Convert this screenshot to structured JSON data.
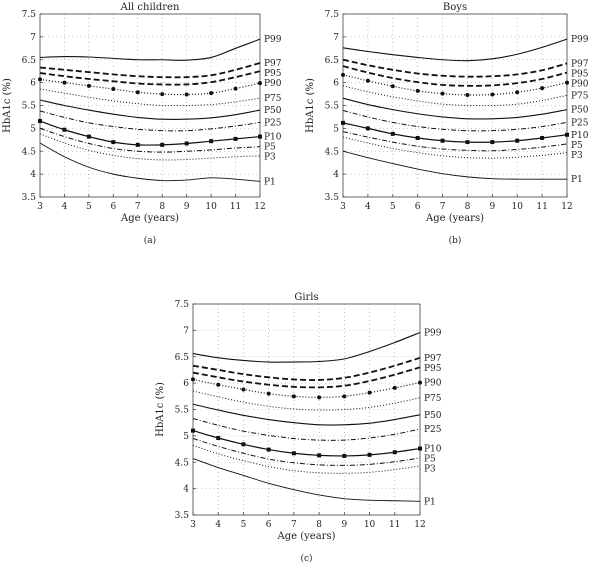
{
  "figure": {
    "captions": [
      "(a)",
      "(b)",
      "(c)"
    ]
  },
  "chart_data": [
    {
      "type": "line",
      "title": "All children",
      "caption": "(a)",
      "xlabel": "Age (years)",
      "ylabel": "HbA1c (%)",
      "xlim": [
        3,
        12
      ],
      "ylim": [
        3.5,
        7.5
      ],
      "xticks": [
        3,
        4,
        5,
        6,
        7,
        8,
        9,
        10,
        11,
        12
      ],
      "yticks": [
        3.5,
        4,
        4.5,
        5,
        5.5,
        6,
        6.5,
        7,
        7.5
      ],
      "x": [
        3,
        4,
        5,
        6,
        7,
        8,
        9,
        10,
        11,
        12
      ],
      "series": [
        {
          "name": "P99",
          "style": "solid",
          "values": [
            6.55,
            6.57,
            6.56,
            6.53,
            6.5,
            6.5,
            6.49,
            6.55,
            6.75,
            6.95
          ]
        },
        {
          "name": "P97",
          "style": "dash",
          "values": [
            6.33,
            6.28,
            6.23,
            6.18,
            6.14,
            6.12,
            6.12,
            6.16,
            6.28,
            6.43
          ]
        },
        {
          "name": "P95",
          "style": "dash",
          "values": [
            6.21,
            6.14,
            6.08,
            6.03,
            5.98,
            5.96,
            5.96,
            6.01,
            6.12,
            6.25
          ]
        },
        {
          "name": "P90",
          "style": "dotted-marker",
          "values": [
            6.07,
            6.0,
            5.93,
            5.86,
            5.79,
            5.75,
            5.74,
            5.77,
            5.87,
            5.99
          ]
        },
        {
          "name": "P75",
          "style": "dot",
          "values": [
            5.86,
            5.77,
            5.68,
            5.6,
            5.54,
            5.5,
            5.5,
            5.52,
            5.58,
            5.66
          ]
        },
        {
          "name": "P50",
          "style": "solid",
          "values": [
            5.62,
            5.5,
            5.4,
            5.31,
            5.24,
            5.2,
            5.2,
            5.23,
            5.3,
            5.4
          ]
        },
        {
          "name": "P25",
          "style": "dashdot",
          "values": [
            5.38,
            5.24,
            5.12,
            5.04,
            4.98,
            4.95,
            4.95,
            4.99,
            5.05,
            5.13
          ]
        },
        {
          "name": "P10",
          "style": "square-marker",
          "values": [
            5.16,
            4.97,
            4.82,
            4.7,
            4.64,
            4.64,
            4.67,
            4.72,
            4.77,
            4.82
          ]
        },
        {
          "name": "P5",
          "style": "dashdot",
          "values": [
            5.0,
            4.82,
            4.67,
            4.56,
            4.5,
            4.48,
            4.5,
            4.53,
            4.57,
            4.6
          ]
        },
        {
          "name": "P3",
          "style": "dot",
          "values": [
            4.88,
            4.68,
            4.52,
            4.41,
            4.34,
            4.31,
            4.32,
            4.35,
            4.38,
            4.4
          ]
        },
        {
          "name": "P1",
          "style": "thin",
          "values": [
            4.68,
            4.38,
            4.15,
            4.0,
            3.91,
            3.86,
            3.87,
            3.92,
            3.89,
            3.84
          ]
        }
      ]
    },
    {
      "type": "line",
      "title": "Boys",
      "caption": "(b)",
      "xlabel": "Age (years)",
      "ylabel": "HbA1c (%)",
      "xlim": [
        3,
        12
      ],
      "ylim": [
        3.5,
        7.5
      ],
      "xticks": [
        3,
        4,
        5,
        6,
        7,
        8,
        9,
        10,
        11,
        12
      ],
      "yticks": [
        3.5,
        4,
        4.5,
        5,
        5.5,
        6,
        6.5,
        7,
        7.5
      ],
      "x": [
        3,
        4,
        5,
        6,
        7,
        8,
        9,
        10,
        11,
        12
      ],
      "series": [
        {
          "name": "P99",
          "style": "solid",
          "values": [
            6.76,
            6.68,
            6.61,
            6.55,
            6.5,
            6.48,
            6.52,
            6.62,
            6.77,
            6.95
          ]
        },
        {
          "name": "P97",
          "style": "dash",
          "values": [
            6.5,
            6.38,
            6.28,
            6.2,
            6.15,
            6.13,
            6.14,
            6.18,
            6.27,
            6.42
          ]
        },
        {
          "name": "P95",
          "style": "dash",
          "values": [
            6.36,
            6.22,
            6.1,
            6.01,
            5.95,
            5.93,
            5.94,
            5.99,
            6.08,
            6.22
          ]
        },
        {
          "name": "P90",
          "style": "dotted-marker",
          "values": [
            6.17,
            6.04,
            5.92,
            5.82,
            5.76,
            5.73,
            5.74,
            5.79,
            5.88,
            6.0
          ]
        },
        {
          "name": "P75",
          "style": "dot",
          "values": [
            5.93,
            5.8,
            5.69,
            5.6,
            5.53,
            5.5,
            5.5,
            5.53,
            5.61,
            5.72
          ]
        },
        {
          "name": "P50",
          "style": "solid",
          "values": [
            5.66,
            5.52,
            5.41,
            5.32,
            5.25,
            5.21,
            5.21,
            5.24,
            5.31,
            5.41
          ]
        },
        {
          "name": "P25",
          "style": "dashdot",
          "values": [
            5.39,
            5.25,
            5.13,
            5.04,
            4.98,
            4.95,
            4.95,
            4.98,
            5.04,
            5.13
          ]
        },
        {
          "name": "P10",
          "style": "square-marker",
          "values": [
            5.12,
            5.0,
            4.88,
            4.79,
            4.73,
            4.7,
            4.7,
            4.73,
            4.79,
            4.86
          ]
        },
        {
          "name": "P5",
          "style": "dashdot",
          "values": [
            4.93,
            4.81,
            4.7,
            4.61,
            4.55,
            4.52,
            4.51,
            4.54,
            4.59,
            4.66
          ]
        },
        {
          "name": "P3",
          "style": "dot",
          "values": [
            4.81,
            4.68,
            4.56,
            4.47,
            4.4,
            4.36,
            4.35,
            4.37,
            4.41,
            4.47
          ]
        },
        {
          "name": "P1",
          "style": "thin",
          "values": [
            4.5,
            4.36,
            4.23,
            4.11,
            4.01,
            3.94,
            3.9,
            3.89,
            3.89,
            3.89
          ]
        }
      ]
    },
    {
      "type": "line",
      "title": "Girls",
      "caption": "(c)",
      "xlabel": "Age (years)",
      "ylabel": "HbA1c (%)",
      "xlim": [
        3,
        12
      ],
      "ylim": [
        3.5,
        7.5
      ],
      "xticks": [
        3,
        4,
        5,
        6,
        7,
        8,
        9,
        10,
        11,
        12
      ],
      "yticks": [
        3.5,
        4,
        4.5,
        5,
        5.5,
        6,
        6.5,
        7,
        7.5
      ],
      "x": [
        3,
        4,
        5,
        6,
        7,
        8,
        9,
        10,
        11,
        12
      ],
      "series": [
        {
          "name": "P99",
          "style": "solid",
          "values": [
            6.56,
            6.48,
            6.43,
            6.4,
            6.4,
            6.41,
            6.46,
            6.6,
            6.77,
            6.96
          ]
        },
        {
          "name": "P97",
          "style": "dash",
          "values": [
            6.33,
            6.25,
            6.17,
            6.11,
            6.07,
            6.06,
            6.1,
            6.2,
            6.33,
            6.48
          ]
        },
        {
          "name": "P95",
          "style": "dash",
          "values": [
            6.2,
            6.11,
            6.03,
            5.97,
            5.93,
            5.92,
            5.95,
            6.04,
            6.16,
            6.3
          ]
        },
        {
          "name": "P90",
          "style": "dotted-marker",
          "values": [
            6.07,
            5.97,
            5.88,
            5.8,
            5.75,
            5.73,
            5.75,
            5.82,
            5.91,
            6.01
          ]
        },
        {
          "name": "P75",
          "style": "dot",
          "values": [
            5.85,
            5.74,
            5.64,
            5.56,
            5.51,
            5.49,
            5.5,
            5.54,
            5.62,
            5.72
          ]
        },
        {
          "name": "P50",
          "style": "solid",
          "values": [
            5.6,
            5.49,
            5.39,
            5.31,
            5.25,
            5.21,
            5.21,
            5.24,
            5.31,
            5.4
          ]
        },
        {
          "name": "P25",
          "style": "dashdot",
          "values": [
            5.33,
            5.2,
            5.09,
            5.01,
            4.95,
            4.92,
            4.92,
            4.96,
            5.03,
            5.13
          ]
        },
        {
          "name": "P10",
          "style": "square-marker",
          "values": [
            5.1,
            4.96,
            4.84,
            4.74,
            4.67,
            4.63,
            4.62,
            4.64,
            4.69,
            4.76
          ]
        },
        {
          "name": "P5",
          "style": "dashdot",
          "values": [
            4.95,
            4.8,
            4.67,
            4.56,
            4.49,
            4.45,
            4.44,
            4.46,
            4.51,
            4.58
          ]
        },
        {
          "name": "P3",
          "style": "dot",
          "values": [
            4.82,
            4.66,
            4.53,
            4.42,
            4.34,
            4.3,
            4.29,
            4.31,
            4.36,
            4.43
          ]
        },
        {
          "name": "P1",
          "style": "thin",
          "values": [
            4.57,
            4.4,
            4.25,
            4.1,
            3.98,
            3.88,
            3.81,
            3.78,
            3.77,
            3.76
          ]
        }
      ]
    }
  ]
}
